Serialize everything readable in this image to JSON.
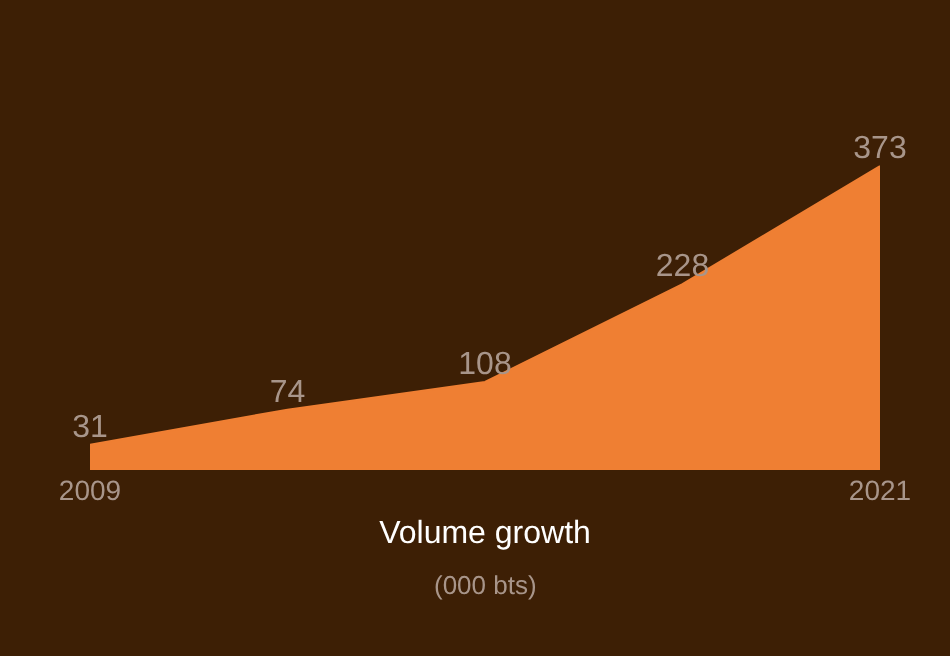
{
  "chart_data": {
    "type": "area",
    "xlabel": "Volume growth",
    "annotations": [
      "(000 bts)"
    ],
    "x": [
      2009,
      2012,
      2015,
      2018,
      2021
    ],
    "values": [
      31,
      74,
      108,
      228,
      373
    ],
    "color": "#ef7f33",
    "data_labels": true,
    "xlim": [
      2009,
      2021
    ],
    "xticks": [
      2009,
      2021
    ],
    "tick_labels": "x",
    "grid": false
  }
}
